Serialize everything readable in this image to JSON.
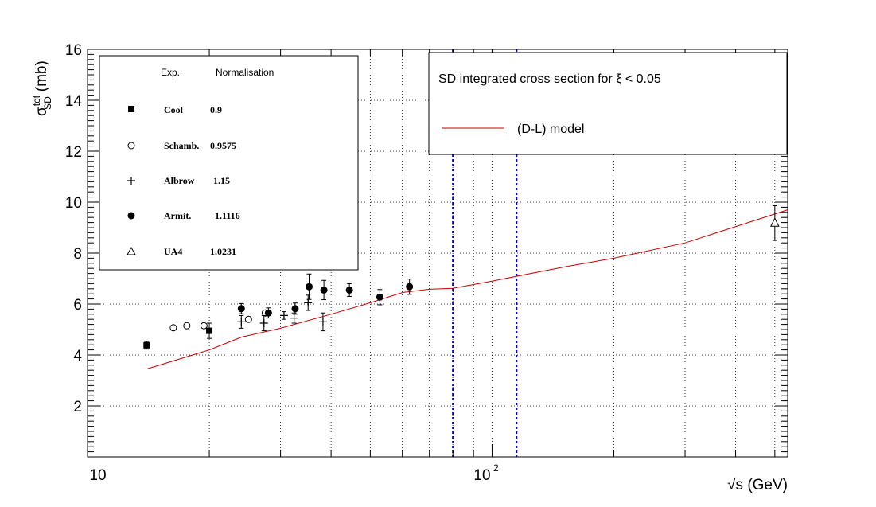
{
  "chart_data": {
    "type": "scatter",
    "xlabel": "√s (GeV)",
    "ylabel": {
      "main": "σ",
      "sup": "tot",
      "sub": "SD",
      "unit": "(mb)"
    },
    "x_scale": "log",
    "xlim": [
      10,
      538
    ],
    "ylim": [
      0,
      16
    ],
    "grid": true,
    "x_tick_labels": [
      {
        "x": 10,
        "text": "10"
      },
      {
        "x": 100,
        "text": "10",
        "exp": "2"
      }
    ],
    "y_tick_labels": [
      "2",
      "4",
      "6",
      "8",
      "10",
      "12",
      "14",
      "16"
    ],
    "legend_experiments": {
      "position": "top-left",
      "header_exp": "Exp.",
      "header_norm": "Normalisation",
      "entries": [
        {
          "name": "Cool",
          "normalisation": "0.9",
          "marker": "filled-square"
        },
        {
          "name": "Schamb.",
          "normalisation": "0.9575",
          "marker": "open-circle"
        },
        {
          "name": "Albrow",
          "normalisation": "1.15",
          "marker": "plus"
        },
        {
          "name": "Armit.",
          "normalisation": "1.1116",
          "marker": "filled-circle"
        },
        {
          "name": "UA4",
          "normalisation": "1.0231",
          "marker": "open-triangle"
        }
      ]
    },
    "legend_model": {
      "position": "top-right",
      "title": "SD integrated cross section for ξ < 0.05",
      "line_label": "(D-L) model",
      "line_color": "#cc0000"
    },
    "vertical_lines": {
      "x": [
        80,
        115
      ],
      "color": "#0000cc",
      "style": "dotted"
    },
    "series": [
      {
        "marker": "filled-square",
        "points": [
          {
            "x": 14,
            "y": 4.38,
            "err": 0.15
          },
          {
            "x": 20,
            "y": 4.95,
            "err": 0.3
          }
        ]
      },
      {
        "marker": "open-circle",
        "points": [
          {
            "x": 16.3,
            "y": 5.07
          },
          {
            "x": 17.6,
            "y": 5.15
          },
          {
            "x": 19.4,
            "y": 5.15
          },
          {
            "x": 25.0,
            "y": 5.4
          },
          {
            "x": 27.5,
            "y": 5.65
          }
        ]
      },
      {
        "marker": "plus",
        "points": [
          {
            "x": 24.0,
            "y": 5.3,
            "err": 0.25
          },
          {
            "x": 27.3,
            "y": 5.25,
            "err": 0.3
          },
          {
            "x": 30.6,
            "y": 5.55,
            "err": 0.15
          },
          {
            "x": 32.4,
            "y": 5.45,
            "err": 0.2
          },
          {
            "x": 35.1,
            "y": 6.05,
            "err": 0.3
          },
          {
            "x": 38.2,
            "y": 5.3,
            "err": 0.35
          }
        ]
      },
      {
        "marker": "filled-circle",
        "points": [
          {
            "x": 24.0,
            "y": 5.82,
            "err": 0.2
          },
          {
            "x": 28.0,
            "y": 5.65,
            "err": 0.2
          },
          {
            "x": 32.6,
            "y": 5.82,
            "err": 0.22
          },
          {
            "x": 35.3,
            "y": 6.68,
            "err": 0.5
          },
          {
            "x": 38.4,
            "y": 6.55,
            "err": 0.38
          },
          {
            "x": 44.4,
            "y": 6.55,
            "err": 0.25
          },
          {
            "x": 52.8,
            "y": 6.27,
            "err": 0.3
          },
          {
            "x": 62.5,
            "y": 6.68,
            "err": 0.3
          }
        ]
      },
      {
        "marker": "open-triangle",
        "points": [
          {
            "x": 500,
            "y": 9.18,
            "err": 0.68
          }
        ]
      },
      {
        "marker": "line",
        "color": "#cc0000",
        "points": [
          {
            "x": 14,
            "y": 3.45
          },
          {
            "x": 20,
            "y": 4.2
          },
          {
            "x": 24,
            "y": 4.7
          },
          {
            "x": 30,
            "y": 5.05
          },
          {
            "x": 40,
            "y": 5.6
          },
          {
            "x": 50,
            "y": 6.05
          },
          {
            "x": 60,
            "y": 6.45
          },
          {
            "x": 70,
            "y": 6.58
          },
          {
            "x": 80,
            "y": 6.62
          },
          {
            "x": 100,
            "y": 6.9
          },
          {
            "x": 150,
            "y": 7.45
          },
          {
            "x": 200,
            "y": 7.8
          },
          {
            "x": 300,
            "y": 8.4
          },
          {
            "x": 538,
            "y": 9.7
          }
        ]
      }
    ]
  }
}
